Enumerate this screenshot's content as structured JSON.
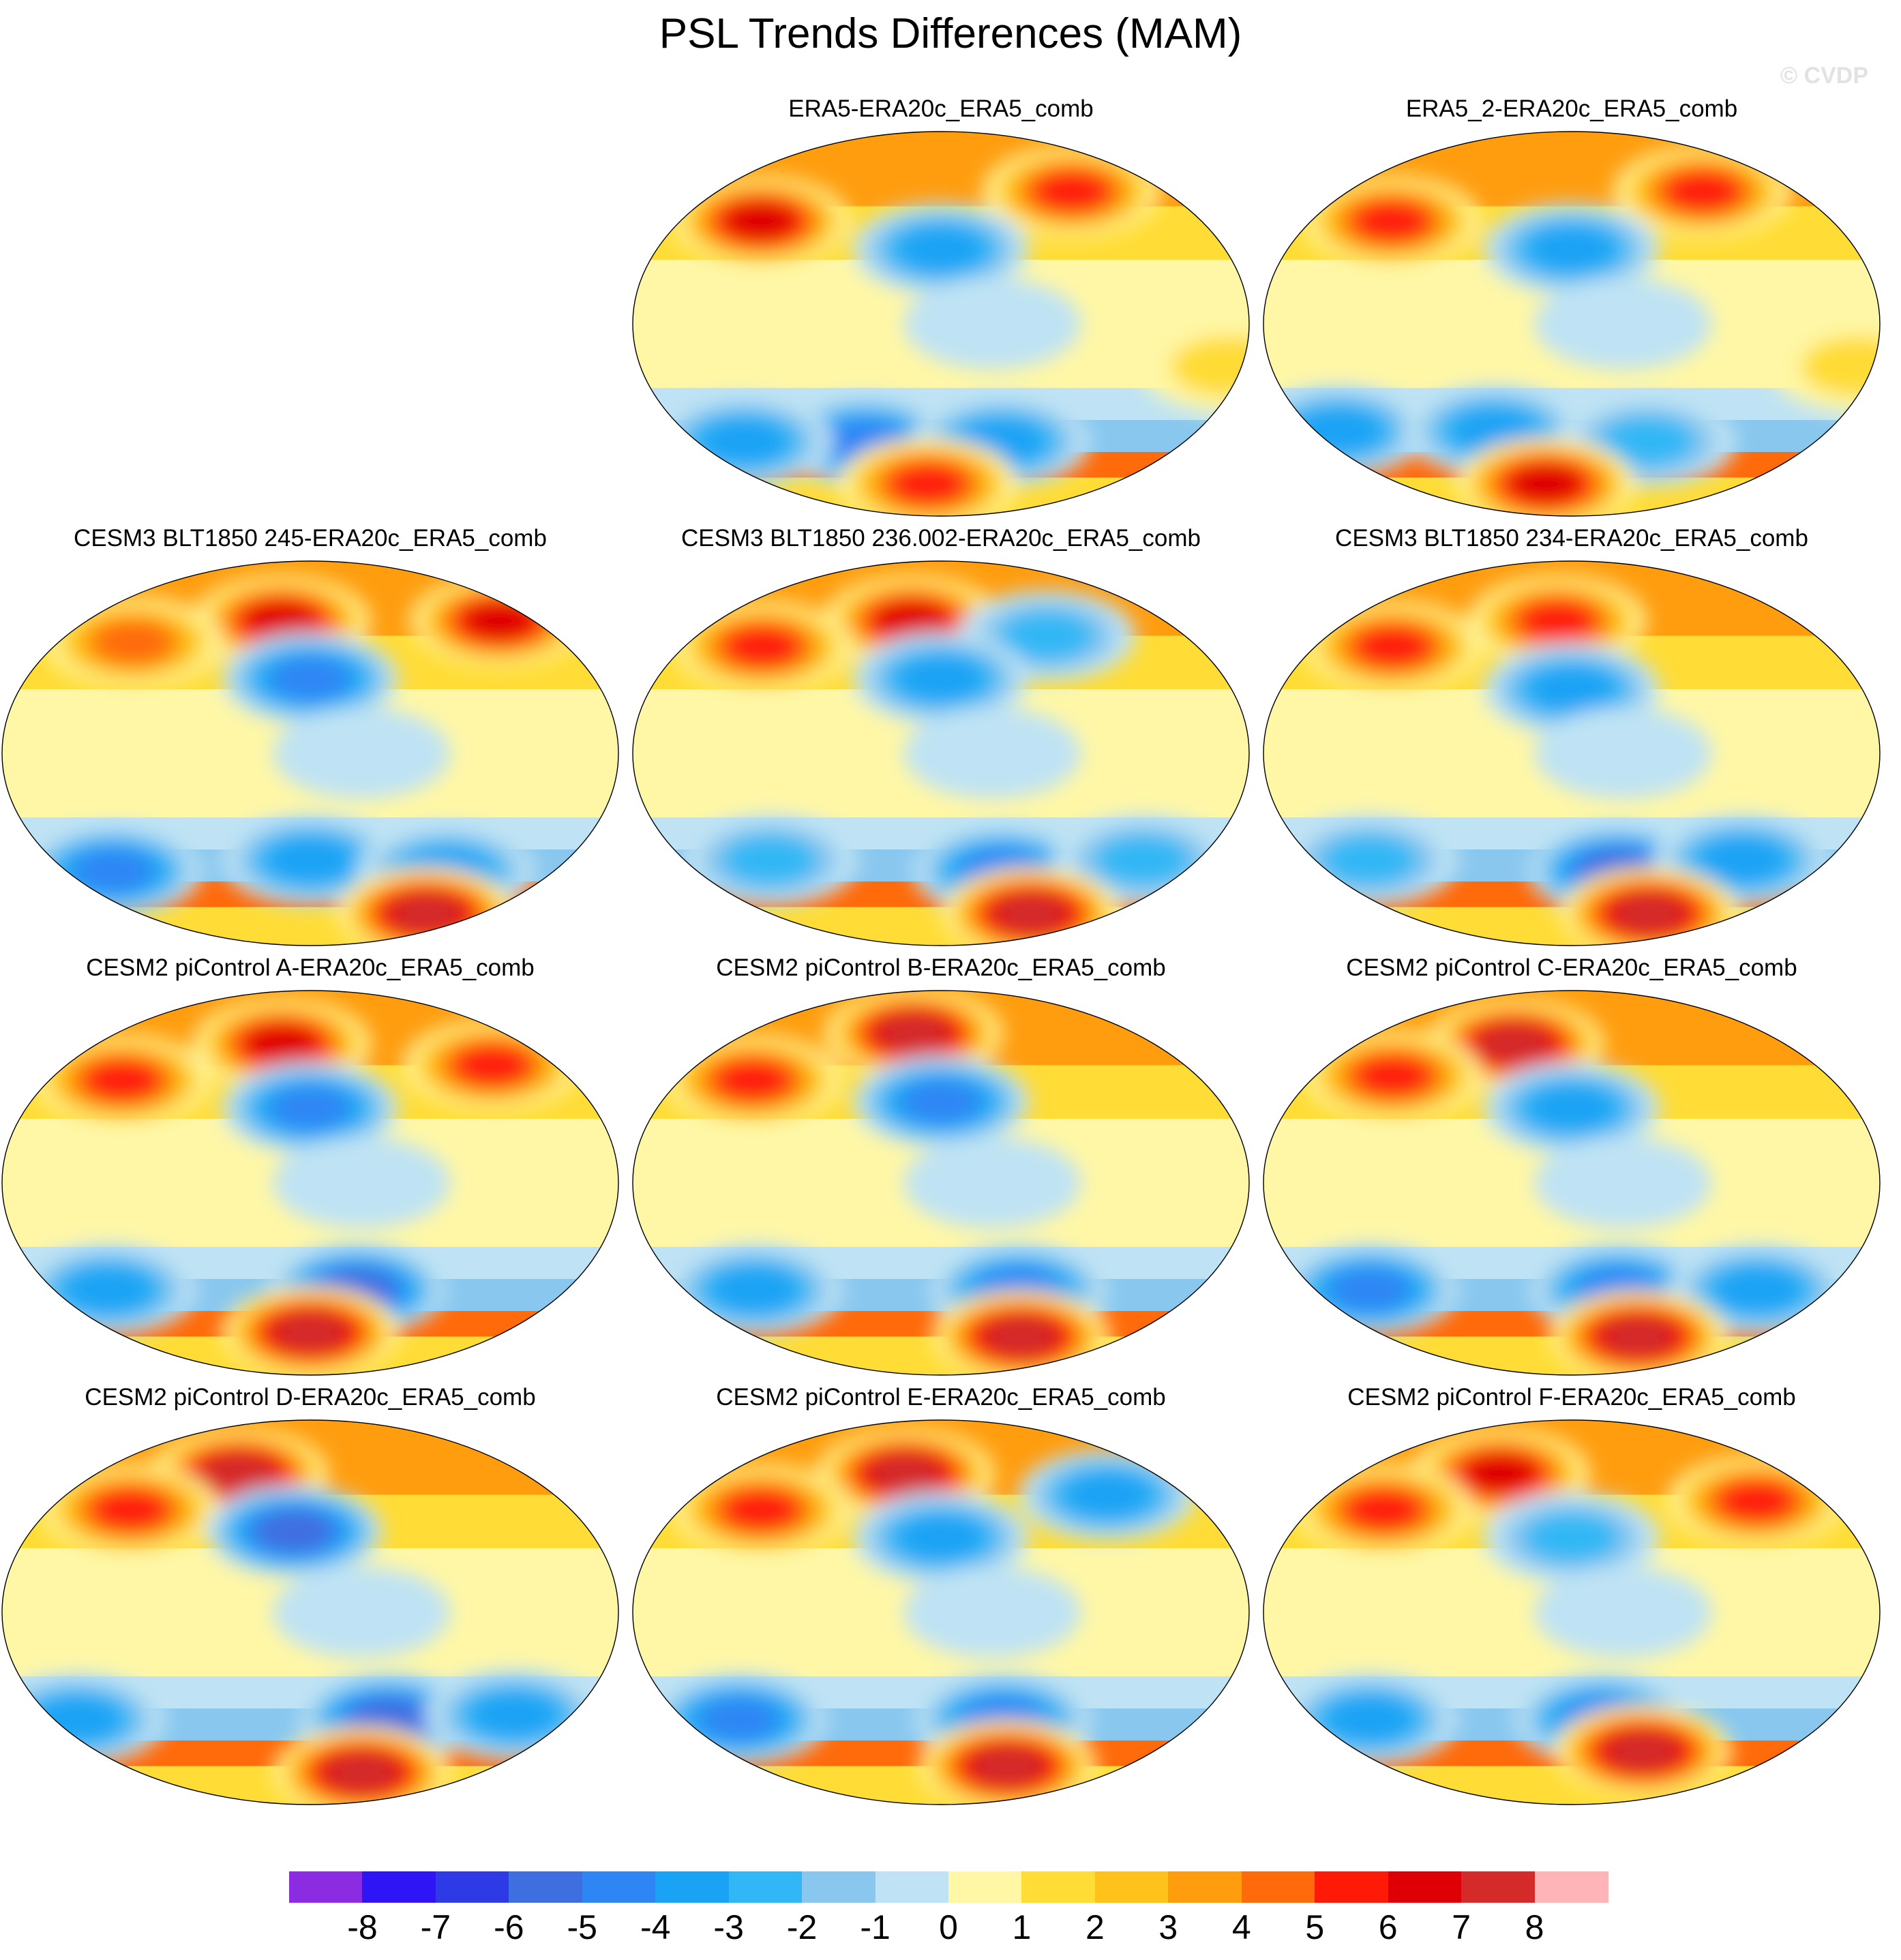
{
  "figure": {
    "title": "PSL Trends Differences (MAM)",
    "watermark": "© CVDP"
  },
  "panels": [
    {
      "id": "p1",
      "label": "ERA5-ERA20c_ERA5_comb",
      "pattern": [
        {
          "lon": -60,
          "lat": 62,
          "v": 6
        },
        {
          "lon": 95,
          "lat": 48,
          "v": 7
        },
        {
          "lon": -150,
          "lat": 35,
          "v": -4
        },
        {
          "lon": 160,
          "lat": -55,
          "v": -5
        },
        {
          "lon": -110,
          "lat": -55,
          "v": -4
        },
        {
          "lon": 80,
          "lat": -55,
          "v": -4
        },
        {
          "lon": -160,
          "lat": -75,
          "v": 6
        },
        {
          "lon": 20,
          "lat": -20,
          "v": 2
        },
        {
          "lon": -120,
          "lat": 0,
          "v": -1
        }
      ]
    },
    {
      "id": "p2",
      "label": "ERA5_2-ERA20c_ERA5_comb",
      "pattern": [
        {
          "lon": -60,
          "lat": 62,
          "v": 6
        },
        {
          "lon": 95,
          "lat": 48,
          "v": 6
        },
        {
          "lon": -150,
          "lat": 35,
          "v": -4
        },
        {
          "lon": 60,
          "lat": -50,
          "v": -4
        },
        {
          "lon": 160,
          "lat": -50,
          "v": -4
        },
        {
          "lon": -100,
          "lat": -55,
          "v": -3
        },
        {
          "lon": -170,
          "lat": -75,
          "v": 7
        },
        {
          "lon": 20,
          "lat": -20,
          "v": 2
        },
        {
          "lon": -120,
          "lat": 0,
          "v": -1
        }
      ]
    },
    {
      "id": "p3",
      "label": "CESM3 BLT1850 245-ERA20c_ERA5_comb",
      "pattern": [
        {
          "lon": -170,
          "lat": 62,
          "v": 7
        },
        {
          "lon": 95,
          "lat": 52,
          "v": 5
        },
        {
          "lon": -20,
          "lat": 62,
          "v": 7
        },
        {
          "lon": -150,
          "lat": 35,
          "v": -5
        },
        {
          "lon": 80,
          "lat": -55,
          "v": -5
        },
        {
          "lon": -150,
          "lat": -50,
          "v": -4
        },
        {
          "lon": -60,
          "lat": -55,
          "v": -4
        },
        {
          "lon": -60,
          "lat": -75,
          "v": 8
        },
        {
          "lon": -120,
          "lat": 0,
          "v": -1
        }
      ]
    },
    {
      "id": "p4",
      "label": "CESM3 BLT1850 236.002-ERA20c_ERA5_comb",
      "pattern": [
        {
          "lon": -170,
          "lat": 62,
          "v": 7
        },
        {
          "lon": 95,
          "lat": 50,
          "v": 6
        },
        {
          "lon": -80,
          "lat": 55,
          "v": -3
        },
        {
          "lon": -150,
          "lat": 35,
          "v": -4
        },
        {
          "lon": -110,
          "lat": -55,
          "v": -5
        },
        {
          "lon": 100,
          "lat": -50,
          "v": -3
        },
        {
          "lon": -20,
          "lat": -50,
          "v": -3
        },
        {
          "lon": -80,
          "lat": -75,
          "v": 8
        },
        {
          "lon": -120,
          "lat": 0,
          "v": -1
        }
      ]
    },
    {
      "id": "p5",
      "label": "CESM3 BLT1850 234-ERA20c_ERA5_comb",
      "pattern": [
        {
          "lon": -160,
          "lat": 62,
          "v": 6
        },
        {
          "lon": 95,
          "lat": 50,
          "v": 6
        },
        {
          "lon": -150,
          "lat": 30,
          "v": -4
        },
        {
          "lon": -120,
          "lat": -55,
          "v": -6
        },
        {
          "lon": 80,
          "lat": -50,
          "v": -3
        },
        {
          "lon": -40,
          "lat": -50,
          "v": -4
        },
        {
          "lon": -90,
          "lat": -75,
          "v": 8
        },
        {
          "lon": -120,
          "lat": 0,
          "v": -1
        }
      ]
    },
    {
      "id": "p6",
      "label": "CESM2 piControl A-ERA20c_ERA5_comb",
      "pattern": [
        {
          "lon": -170,
          "lat": 65,
          "v": 7
        },
        {
          "lon": 90,
          "lat": 48,
          "v": 6
        },
        {
          "lon": -30,
          "lat": 55,
          "v": 6
        },
        {
          "lon": -150,
          "lat": 35,
          "v": -5
        },
        {
          "lon": -120,
          "lat": -50,
          "v": -6
        },
        {
          "lon": 80,
          "lat": -50,
          "v": -4
        },
        {
          "lon": -150,
          "lat": -70,
          "v": 8
        },
        {
          "lon": -120,
          "lat": 0,
          "v": -1
        }
      ]
    },
    {
      "id": "p7",
      "label": "CESM2 piControl B-ERA20c_ERA5_comb",
      "pattern": [
        {
          "lon": -170,
          "lat": 70,
          "v": 8
        },
        {
          "lon": 90,
          "lat": 48,
          "v": 6
        },
        {
          "lon": -150,
          "lat": 38,
          "v": -5
        },
        {
          "lon": -100,
          "lat": -50,
          "v": -5
        },
        {
          "lon": 90,
          "lat": -50,
          "v": -4
        },
        {
          "lon": -90,
          "lat": -72,
          "v": 8
        },
        {
          "lon": -120,
          "lat": 0,
          "v": -1
        }
      ]
    },
    {
      "id": "p8",
      "label": "CESM2 piControl C-ERA20c_ERA5_comb",
      "pattern": [
        {
          "lon": 170,
          "lat": 65,
          "v": 8
        },
        {
          "lon": 95,
          "lat": 50,
          "v": 6
        },
        {
          "lon": -150,
          "lat": 35,
          "v": -4
        },
        {
          "lon": -120,
          "lat": -50,
          "v": -5
        },
        {
          "lon": 80,
          "lat": -50,
          "v": -5
        },
        {
          "lon": -30,
          "lat": -50,
          "v": -4
        },
        {
          "lon": -100,
          "lat": -72,
          "v": 8
        },
        {
          "lon": -120,
          "lat": 0,
          "v": -1
        }
      ]
    },
    {
      "id": "p9",
      "label": "CESM2 piControl D-ERA20c_ERA5_comb",
      "pattern": [
        {
          "lon": 160,
          "lat": 65,
          "v": 8
        },
        {
          "lon": 95,
          "lat": 48,
          "v": 6
        },
        {
          "lon": -160,
          "lat": 38,
          "v": -6
        },
        {
          "lon": -100,
          "lat": -50,
          "v": -6
        },
        {
          "lon": 60,
          "lat": -50,
          "v": -4
        },
        {
          "lon": -20,
          "lat": -48,
          "v": -4
        },
        {
          "lon": -110,
          "lat": -75,
          "v": 8
        },
        {
          "lon": -120,
          "lat": 0,
          "v": -1
        }
      ]
    },
    {
      "id": "p10",
      "label": "CESM2 piControl E-ERA20c_ERA5_comb",
      "pattern": [
        {
          "lon": -175,
          "lat": 65,
          "v": 8
        },
        {
          "lon": 95,
          "lat": 48,
          "v": 6
        },
        {
          "lon": -150,
          "lat": 35,
          "v": -4
        },
        {
          "lon": -40,
          "lat": 55,
          "v": -4
        },
        {
          "lon": -110,
          "lat": -50,
          "v": -5
        },
        {
          "lon": 80,
          "lat": -50,
          "v": -5
        },
        {
          "lon": -100,
          "lat": -72,
          "v": 8
        },
        {
          "lon": -120,
          "lat": 0,
          "v": -1
        }
      ]
    },
    {
      "id": "p11",
      "label": "CESM2 piControl F-ERA20c_ERA5_comb",
      "pattern": [
        {
          "lon": 160,
          "lat": 65,
          "v": 7
        },
        {
          "lon": 90,
          "lat": 48,
          "v": 6
        },
        {
          "lon": -30,
          "lat": 52,
          "v": 6
        },
        {
          "lon": -150,
          "lat": 35,
          "v": -3
        },
        {
          "lon": -130,
          "lat": -50,
          "v": -5
        },
        {
          "lon": 80,
          "lat": -50,
          "v": -4
        },
        {
          "lon": -100,
          "lat": -65,
          "v": 8
        },
        {
          "lon": -120,
          "lat": 0,
          "v": -1
        }
      ]
    }
  ],
  "colorbar": {
    "colors": [
      "#8b2be2",
      "#2f14f5",
      "#2e3ae6",
      "#3f6ee0",
      "#2e86f5",
      "#1aa3f5",
      "#31b7f5",
      "#89c7ef",
      "#bfe3f4",
      "#fff7a6",
      "#ffdc36",
      "#ffc21a",
      "#ff9d0f",
      "#ff6a0a",
      "#ff1a07",
      "#df0005",
      "#d42a2a",
      "#ffb5b8"
    ],
    "ticks": [
      "-8",
      "-7",
      "-6",
      "-5",
      "-4",
      "-3",
      "-2",
      "-1",
      "0",
      "1",
      "2",
      "3",
      "4",
      "5",
      "6",
      "7",
      "8"
    ]
  },
  "chart_data": {
    "type": "heatmap",
    "title": "PSL Trends Differences (MAM)",
    "variable": "PSL trend difference",
    "season": "MAM",
    "contour_levels": [
      -8,
      -7,
      -6,
      -5,
      -4,
      -3,
      -2,
      -1,
      0,
      1,
      2,
      3,
      4,
      5,
      6,
      7,
      8
    ],
    "panel_titles": [
      "ERA5-ERA20c_ERA5_comb",
      "ERA5_2-ERA20c_ERA5_comb",
      "CESM3 BLT1850 245-ERA20c_ERA5_comb",
      "CESM3 BLT1850 236.002-ERA20c_ERA5_comb",
      "CESM3 BLT1850 234-ERA20c_ERA5_comb",
      "CESM2 piControl A-ERA20c_ERA5_comb",
      "CESM2 piControl B-ERA20c_ERA5_comb",
      "CESM2 piControl C-ERA20c_ERA5_comb",
      "CESM2 piControl D-ERA20c_ERA5_comb",
      "CESM2 piControl E-ERA20c_ERA5_comb",
      "CESM2 piControl F-ERA20c_ERA5_comb"
    ]
  }
}
